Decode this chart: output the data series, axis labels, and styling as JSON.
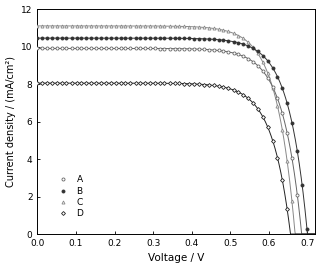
{
  "title": "",
  "xlabel": "Voltage / V",
  "ylabel": "Current density / (mA/cm²)",
  "xlim": [
    0.0,
    0.72
  ],
  "ylim": [
    0,
    12
  ],
  "xticks": [
    0.0,
    0.1,
    0.2,
    0.3,
    0.4,
    0.5,
    0.6,
    0.7
  ],
  "yticks": [
    0,
    2,
    4,
    6,
    8,
    10,
    12
  ],
  "curves": {
    "A": {
      "jsc": 9.9,
      "voc": 0.685,
      "n_ideal": 1.85,
      "color": "#666666",
      "marker": "o",
      "markersize": 2.2,
      "marker_face": "white",
      "marker_edge": "#666666",
      "zorder": 3
    },
    "B": {
      "jsc": 10.45,
      "voc": 0.7,
      "n_ideal": 1.85,
      "color": "#333333",
      "marker": "o",
      "markersize": 2.2,
      "marker_face": "#333333",
      "marker_edge": "#333333",
      "zorder": 4
    },
    "C": {
      "jsc": 11.1,
      "voc": 0.668,
      "n_ideal": 1.85,
      "color": "#888888",
      "marker": "^",
      "markersize": 2.2,
      "marker_face": "white",
      "marker_edge": "#888888",
      "zorder": 2
    },
    "D": {
      "jsc": 8.05,
      "voc": 0.656,
      "n_ideal": 1.85,
      "color": "#222222",
      "marker": "D",
      "markersize": 2.0,
      "marker_face": "white",
      "marker_edge": "#222222",
      "zorder": 5
    }
  },
  "legend_order": [
    "A",
    "B",
    "C",
    "D"
  ],
  "n_markers": 60,
  "background_color": "#ffffff",
  "linewidth": 0.7
}
